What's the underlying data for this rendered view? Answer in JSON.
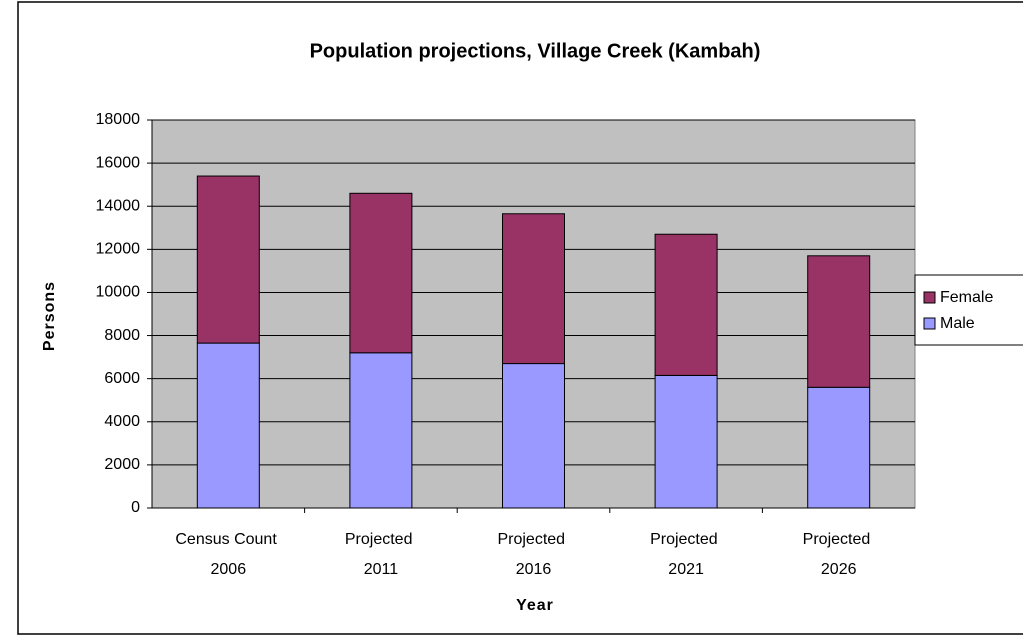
{
  "chart_data": {
    "type": "stacked_bar",
    "title": "Population projections, Village Creek (Kambah)",
    "x_label": "Year",
    "y_label": "Persons",
    "categories": [
      "Census Count 2006",
      "Projected 2011",
      "Projected 2016",
      "Projected 2021",
      "Projected 2026"
    ],
    "series": [
      {
        "name": "Male",
        "color": "#9999ff",
        "values": [
          7650,
          7200,
          6700,
          6150,
          5600
        ]
      },
      {
        "name": "Female",
        "color": "#993366",
        "values": [
          7750,
          7400,
          6950,
          6550,
          6100
        ]
      }
    ],
    "ylim": [
      0,
      18000
    ],
    "yticks": [
      0,
      2000,
      4000,
      6000,
      8000,
      10000,
      12000,
      14000,
      16000,
      18000
    ],
    "grid": true,
    "legend": "right"
  }
}
